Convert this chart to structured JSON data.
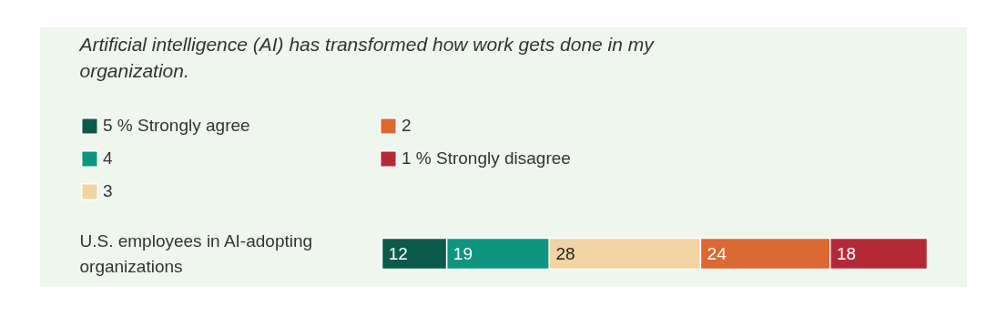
{
  "chart_data": {
    "type": "bar",
    "orientation": "horizontal",
    "stacked": true,
    "title": "Artificial intelligence (AI) has transformed how work gets done in my organization.",
    "categories": [
      "U.S. employees in AI-adopting organizations"
    ],
    "series": [
      {
        "name": "5 % Strongly agree",
        "color": "#0b5a4c",
        "values": [
          12
        ]
      },
      {
        "name": "4",
        "color": "#0e9580",
        "values": [
          19
        ]
      },
      {
        "name": "3",
        "color": "#f2d3a3",
        "values": [
          28
        ]
      },
      {
        "name": "2",
        "color": "#dc6833",
        "values": [
          24
        ]
      },
      {
        "name": "1 % Strongly disagree",
        "color": "#b32a36",
        "values": [
          18
        ]
      }
    ],
    "data_labels": true,
    "legend": "top left",
    "tick_labels": "y",
    "grid": false
  }
}
